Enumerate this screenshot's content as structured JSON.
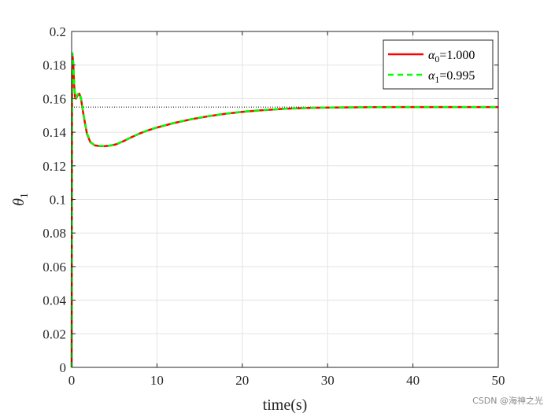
{
  "chart_data": {
    "type": "line",
    "xlabel": "time(s)",
    "ylabel_symbol": "θ",
    "ylabel_sub": "1",
    "xlim": [
      0,
      50
    ],
    "ylim": [
      0,
      0.2
    ],
    "xticks": [
      0,
      10,
      20,
      30,
      40,
      50
    ],
    "yticks": [
      0,
      0.02,
      0.04,
      0.06,
      0.08,
      0.1,
      0.12,
      0.14,
      0.16,
      0.18,
      0.2
    ],
    "xtick_labels": [
      "0",
      "10",
      "20",
      "30",
      "40",
      "50"
    ],
    "ytick_labels": [
      "0",
      "0.02",
      "0.04",
      "0.06",
      "0.08",
      "0.1",
      "0.12",
      "0.14",
      "0.16",
      "0.18",
      "0.2"
    ],
    "grid": true,
    "legend_position": "top-right",
    "reference_line": {
      "y": 0.155,
      "style": "dotted",
      "color": "#000000"
    },
    "series": [
      {
        "name": "α0=1.000",
        "legend_symbol": "α",
        "legend_sub": "0",
        "legend_value": "=1.000",
        "color": "#ff0000",
        "style": "solid",
        "x": [
          0,
          0.05,
          0.1,
          0.2,
          0.3,
          0.4,
          0.5,
          0.7,
          0.9,
          1.1,
          1.4,
          1.8,
          2.2,
          2.7,
          3.2,
          3.8,
          4.5,
          5.2,
          6,
          7,
          8,
          9,
          10,
          12,
          14,
          16,
          18,
          20,
          22,
          25,
          28,
          30,
          35,
          40,
          45,
          50
        ],
        "y": [
          0,
          0.175,
          0.186,
          0.18,
          0.168,
          0.161,
          0.16,
          0.162,
          0.163,
          0.16,
          0.15,
          0.139,
          0.134,
          0.1322,
          0.1318,
          0.1317,
          0.132,
          0.1328,
          0.1345,
          0.137,
          0.1393,
          0.1412,
          0.1428,
          0.1455,
          0.1477,
          0.1495,
          0.151,
          0.1521,
          0.153,
          0.154,
          0.1545,
          0.1547,
          0.1549,
          0.155,
          0.155,
          0.155
        ]
      },
      {
        "name": "α1=0.995",
        "legend_symbol": "α",
        "legend_sub": "1",
        "legend_value": "=0.995",
        "color": "#00ff00",
        "style": "dashed",
        "x": [
          0,
          0.05,
          0.1,
          0.2,
          0.3,
          0.4,
          0.5,
          0.7,
          0.9,
          1.1,
          1.4,
          1.8,
          2.2,
          2.7,
          3.2,
          3.8,
          4.5,
          5.2,
          6,
          7,
          8,
          9,
          10,
          12,
          14,
          16,
          18,
          20,
          22,
          25,
          28,
          30,
          35,
          40,
          45,
          50
        ],
        "y": [
          0,
          0.176,
          0.187,
          0.181,
          0.169,
          0.162,
          0.1605,
          0.1625,
          0.1635,
          0.1605,
          0.1505,
          0.1395,
          0.1342,
          0.1323,
          0.1319,
          0.1318,
          0.1321,
          0.1329,
          0.1346,
          0.1371,
          0.1394,
          0.1413,
          0.1429,
          0.1456,
          0.1478,
          0.1496,
          0.1511,
          0.1522,
          0.1531,
          0.154,
          0.1545,
          0.1547,
          0.1549,
          0.155,
          0.155,
          0.155
        ]
      }
    ]
  },
  "watermark": "CSDN @海神之光"
}
